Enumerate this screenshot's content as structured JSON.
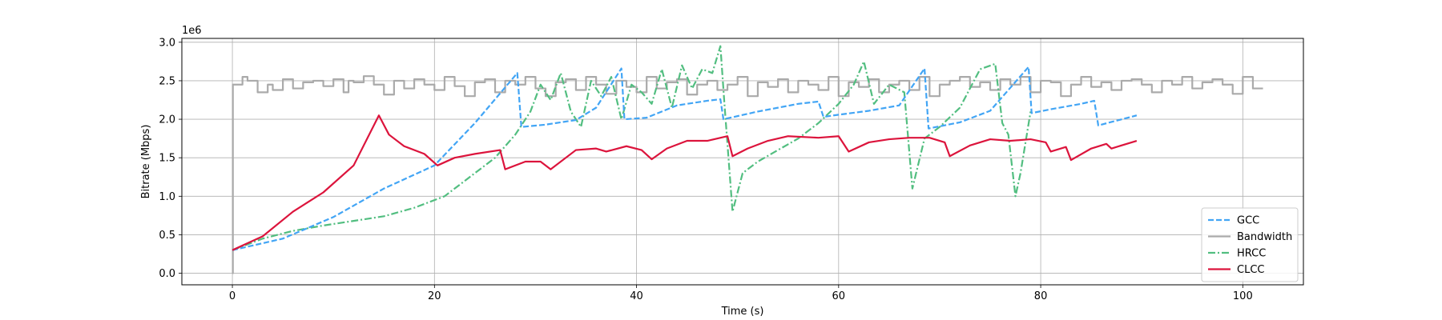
{
  "chart_data": {
    "type": "line",
    "title": "",
    "xlabel": "Time (s)",
    "ylabel": "Bitrate (Mbps)",
    "y_offset_text": "1e6",
    "xlim": [
      -5,
      106
    ],
    "ylim": [
      -150000,
      3050000
    ],
    "x_ticks": [
      0,
      20,
      40,
      60,
      80,
      100
    ],
    "y_ticks": [
      0,
      500000,
      1000000,
      1500000,
      2000000,
      2500000,
      3000000
    ],
    "x_tick_labels": [
      "0",
      "20",
      "40",
      "60",
      "80",
      "100"
    ],
    "y_tick_labels": [
      "0.0",
      "0.5",
      "1.0",
      "1.5",
      "2.0",
      "2.5",
      "3.0"
    ],
    "grid": true,
    "legend_position": "lower-right",
    "series": [
      {
        "name": "GCC",
        "color": "#42a5f5",
        "style": "dashed",
        "x": [
          0,
          5,
          10,
          15,
          20,
          24,
          28.2,
          28.6,
          31,
          34,
          36,
          38.5,
          38.8,
          41,
          44,
          47,
          48.3,
          48.6,
          52,
          56,
          58,
          58.5,
          59.5,
          63,
          66,
          68.5,
          68.9,
          72,
          75,
          78.8,
          79.1,
          81,
          84,
          85.3,
          85.7,
          89.5
        ],
        "y": [
          300000,
          450000,
          730000,
          1100000,
          1400000,
          1950000,
          2600000,
          1900000,
          1930000,
          1990000,
          2150000,
          2660000,
          2000000,
          2020000,
          2180000,
          2240000,
          2260000,
          2000000,
          2100000,
          2200000,
          2230000,
          2030000,
          2050000,
          2110000,
          2180000,
          2660000,
          1880000,
          1960000,
          2110000,
          2680000,
          2080000,
          2130000,
          2200000,
          2240000,
          1920000,
          2050000
        ]
      },
      {
        "name": "Bandwidth",
        "color": "#aaaaaa",
        "style": "step",
        "x": [
          0,
          0.05,
          1,
          1.5,
          2.5,
          3.5,
          4,
          5,
          6,
          7,
          8,
          9,
          10,
          11,
          11.5,
          12,
          13,
          14,
          15,
          16,
          17,
          18,
          19,
          20,
          21,
          22,
          23,
          24,
          25,
          26,
          27,
          28,
          29,
          30,
          31,
          32,
          33,
          34,
          35,
          36,
          37,
          38,
          39,
          40,
          41,
          42,
          43,
          44,
          45,
          46,
          47,
          48,
          49,
          50,
          51,
          52,
          53,
          54,
          55,
          56,
          57,
          58,
          59,
          60,
          61,
          62,
          63,
          64,
          65,
          66,
          67,
          68,
          69,
          70,
          71,
          72,
          73,
          74,
          75,
          76,
          77,
          78,
          79,
          80,
          81,
          82,
          83,
          84,
          85,
          86,
          87,
          88,
          89,
          90,
          91,
          92,
          93,
          94,
          95,
          96,
          97,
          98,
          99,
          100,
          101
        ],
        "y": [
          0,
          2450000,
          2550000,
          2500000,
          2350000,
          2450000,
          2380000,
          2520000,
          2400000,
          2480000,
          2500000,
          2430000,
          2520000,
          2350000,
          2500000,
          2480000,
          2560000,
          2450000,
          2320000,
          2500000,
          2400000,
          2520000,
          2450000,
          2380000,
          2550000,
          2430000,
          2300000,
          2480000,
          2520000,
          2350000,
          2500000,
          2450000,
          2550000,
          2400000,
          2300000,
          2480000,
          2520000,
          2380000,
          2550000,
          2450000,
          2330000,
          2500000,
          2420000,
          2350000,
          2550000,
          2400000,
          2480000,
          2520000,
          2320000,
          2450000,
          2500000,
          2380000,
          2450000,
          2550000,
          2300000,
          2480000,
          2420000,
          2520000,
          2350000,
          2500000,
          2450000,
          2380000,
          2550000,
          2300000,
          2480000,
          2420000,
          2520000,
          2350000,
          2450000,
          2500000,
          2380000,
          2550000,
          2300000,
          2450000,
          2500000,
          2550000,
          2420000,
          2480000,
          2380000,
          2520000,
          2450000,
          2550000,
          2350000,
          2500000,
          2480000,
          2300000,
          2450000,
          2550000,
          2420000,
          2480000,
          2380000,
          2500000,
          2520000,
          2450000,
          2350000,
          2500000,
          2450000,
          2550000,
          2400000,
          2480000,
          2520000,
          2450000,
          2330000,
          2550000,
          2400000
        ]
      },
      {
        "name": "HRCC",
        "color": "#52be80",
        "style": "dashdot",
        "x": [
          0,
          3,
          6,
          9,
          12,
          15,
          18,
          21,
          24,
          26,
          28,
          29.5,
          30.5,
          31.5,
          32.5,
          33.5,
          34.5,
          35.5,
          36.5,
          37.5,
          38.5,
          39.5,
          40.5,
          41.5,
          42.5,
          43.5,
          44.5,
          45.5,
          46.5,
          47.5,
          48.3,
          48.7,
          49.5,
          50.5,
          52,
          54,
          56,
          58,
          60,
          61.5,
          62.5,
          63.5,
          65,
          66.5,
          67.3,
          68.5,
          70,
          72,
          74,
          75.5,
          76.2,
          76.8,
          77.5,
          78,
          79
        ],
        "y": [
          300000,
          450000,
          550000,
          620000,
          680000,
          740000,
          850000,
          1000000,
          1300000,
          1500000,
          1800000,
          2100000,
          2450000,
          2250000,
          2600000,
          2100000,
          1900000,
          2500000,
          2300000,
          2550000,
          2000000,
          2450000,
          2350000,
          2200000,
          2650000,
          2150000,
          2700000,
          2400000,
          2650000,
          2600000,
          2950000,
          2200000,
          800000,
          1300000,
          1450000,
          1600000,
          1750000,
          1950000,
          2200000,
          2450000,
          2750000,
          2200000,
          2450000,
          2350000,
          1100000,
          1750000,
          1900000,
          2150000,
          2650000,
          2720000,
          1950000,
          1800000,
          1000000,
          1300000,
          2100000
        ]
      },
      {
        "name": "CLCC",
        "color": "#dc143c",
        "style": "solid",
        "x": [
          0,
          3,
          6,
          9,
          12,
          14.5,
          15.5,
          17,
          19,
          20.3,
          22,
          24,
          26.5,
          27,
          29,
          30.5,
          31.5,
          34,
          36,
          37,
          39,
          40.5,
          41.5,
          43,
          45,
          47,
          49,
          49.5,
          51,
          53,
          55,
          58,
          60,
          61,
          63,
          65,
          67,
          69,
          70.5,
          71,
          73,
          75,
          77,
          79,
          80.5,
          81,
          82.5,
          83,
          85,
          86.5,
          87,
          89.5
        ],
        "y": [
          300000,
          480000,
          800000,
          1050000,
          1400000,
          2050000,
          1800000,
          1650000,
          1550000,
          1400000,
          1500000,
          1550000,
          1600000,
          1350000,
          1450000,
          1450000,
          1350000,
          1600000,
          1620000,
          1580000,
          1650000,
          1600000,
          1480000,
          1620000,
          1720000,
          1720000,
          1780000,
          1520000,
          1620000,
          1720000,
          1780000,
          1760000,
          1780000,
          1580000,
          1700000,
          1740000,
          1760000,
          1760000,
          1700000,
          1520000,
          1660000,
          1740000,
          1720000,
          1740000,
          1700000,
          1580000,
          1640000,
          1470000,
          1620000,
          1680000,
          1620000,
          1720000
        ]
      }
    ]
  }
}
